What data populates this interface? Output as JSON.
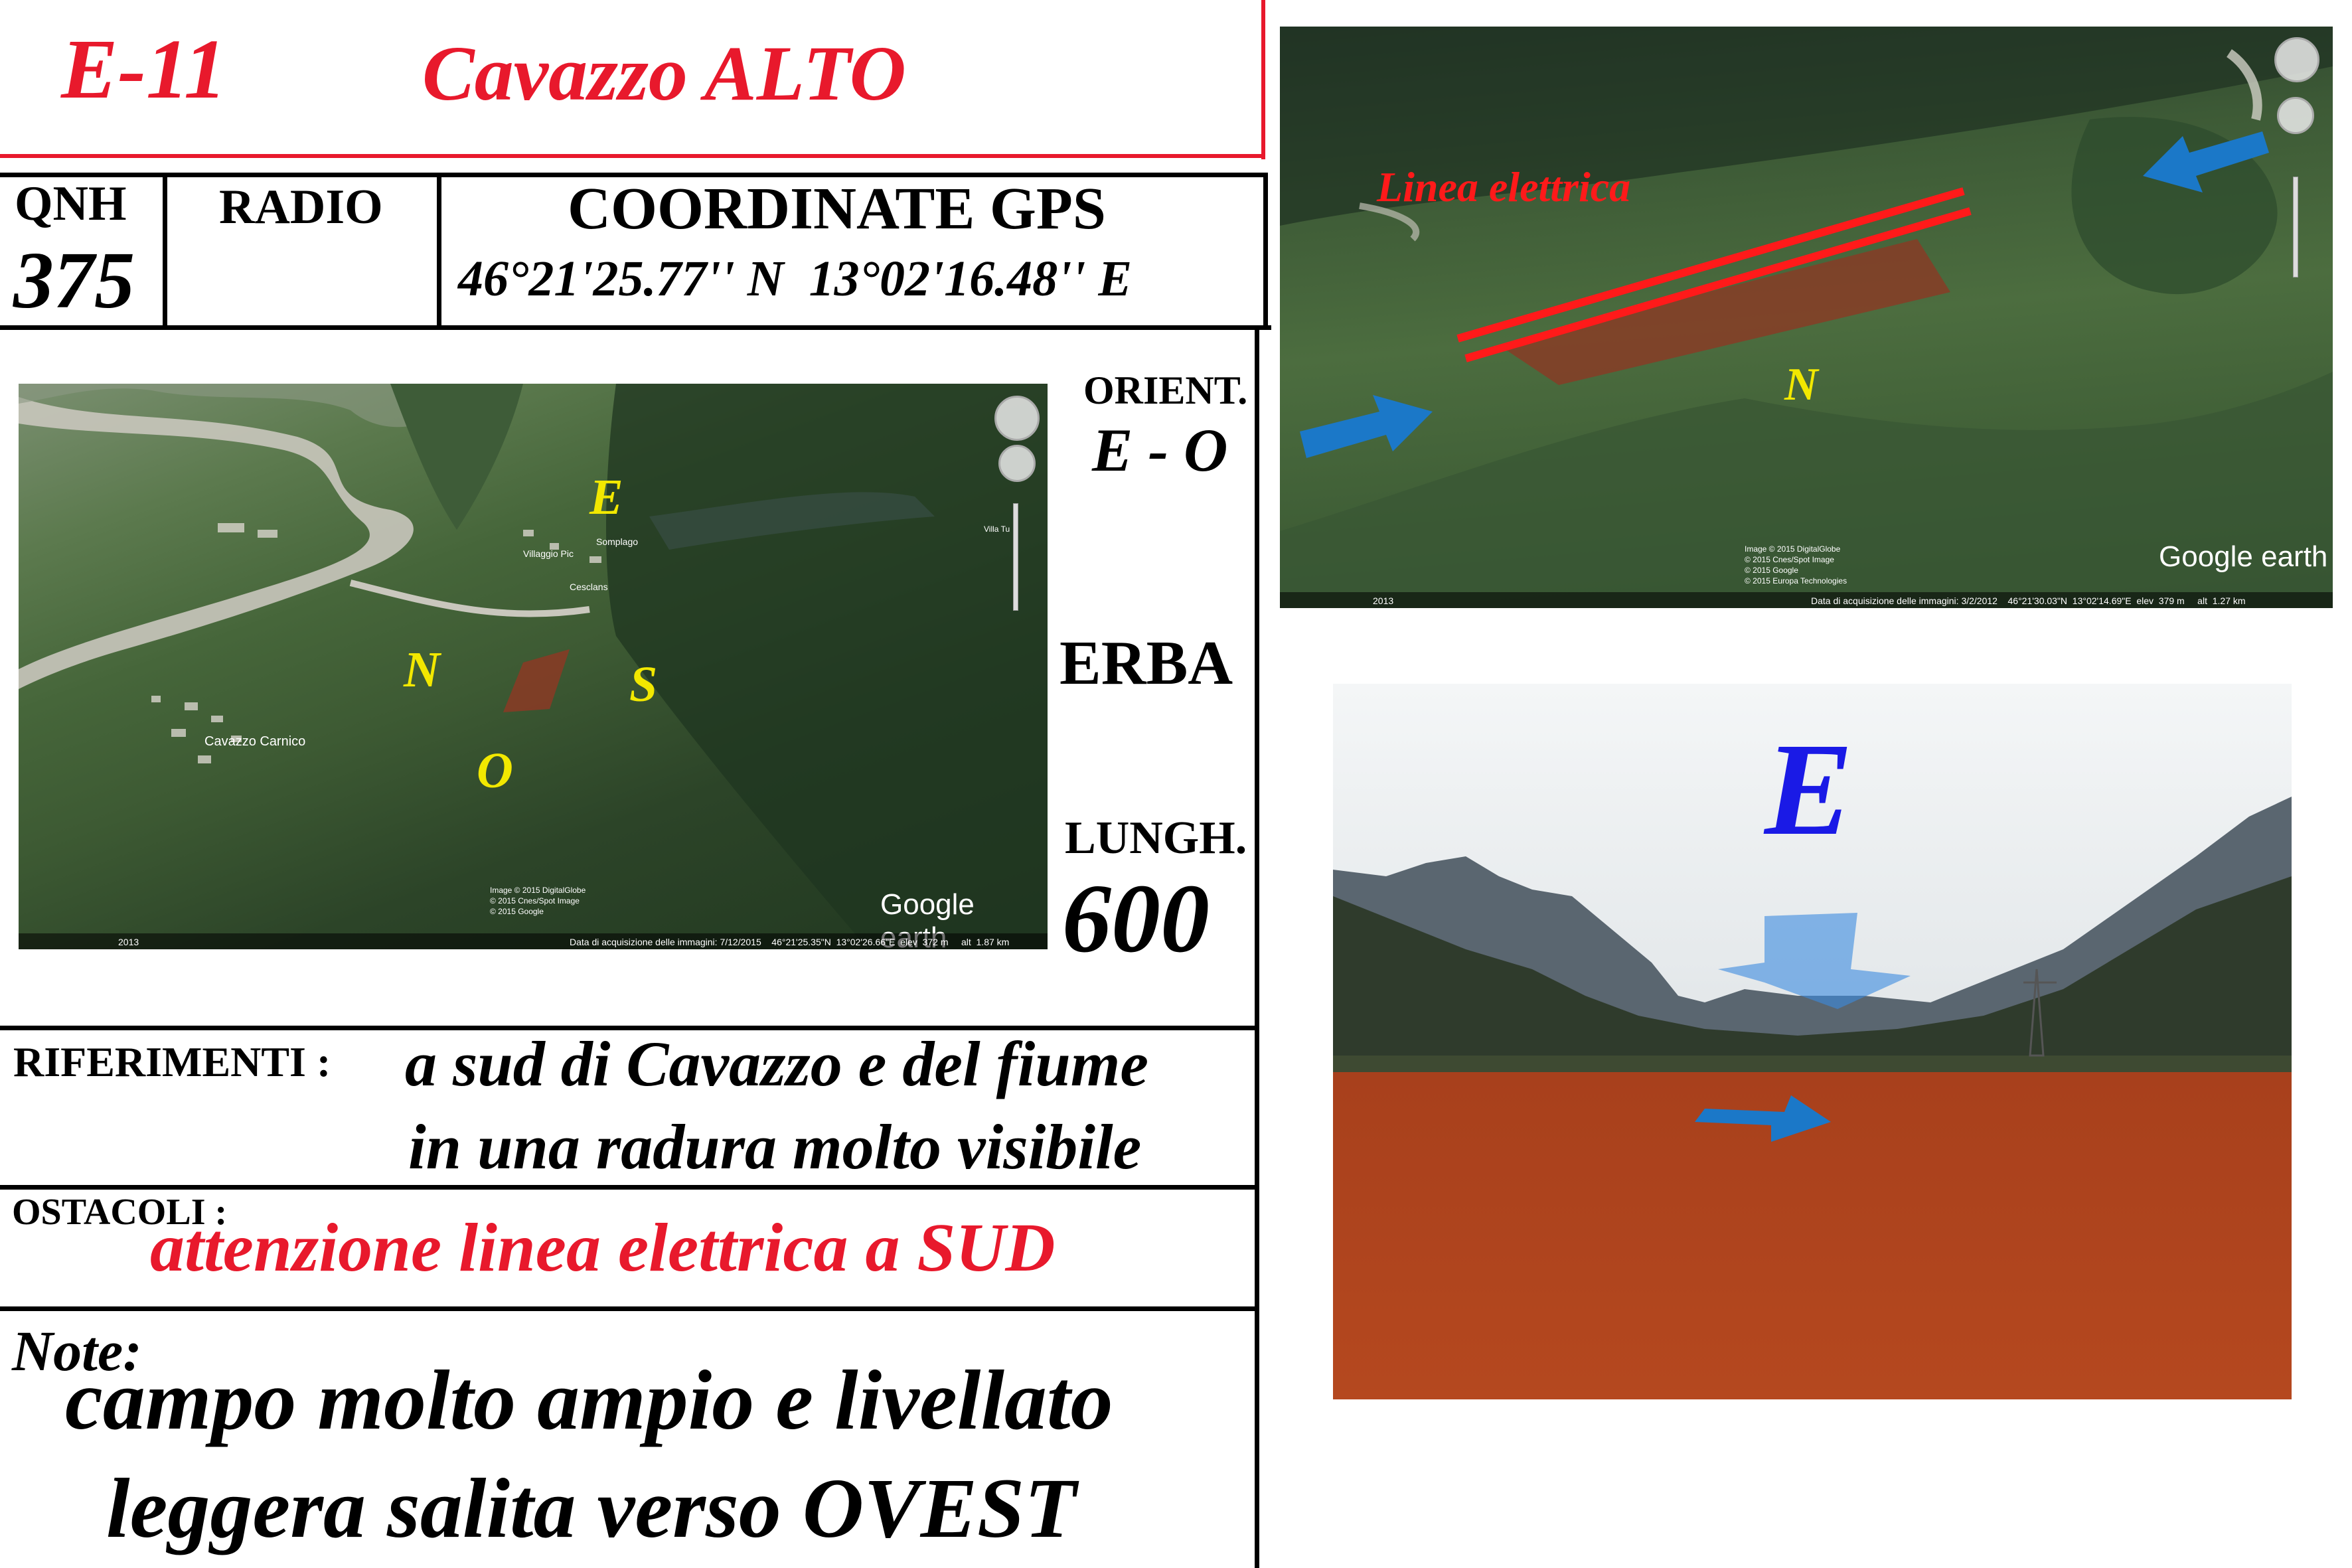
{
  "header": {
    "code": "E-11",
    "name": "Cavazzo ALTO"
  },
  "info": {
    "qnh_label": "QNH",
    "qnh_value": "375",
    "radio_label": "RADIO",
    "gps_label": "COORDINATE GPS",
    "gps_value": "46°21'25.77'' N  13°02'16.48'' E"
  },
  "side": {
    "orient_label": "ORIENT.",
    "orient_value": "E - O",
    "surface": "ERBA",
    "length_label": "LUNGH.",
    "length_value": "600"
  },
  "map_left": {
    "labels": [
      "E",
      "N",
      "S",
      "O"
    ],
    "logo": "Google earth",
    "year": "2013",
    "places": [
      "Cavazzo Carnico",
      "Somplago",
      "Cesclans",
      "Villaggio Pic",
      "Villa Tu"
    ],
    "footer": "Data di acquisizione delle immagini: 7/12/2015    46°21'25.35\"N  13°02'26.66\"E  elev  372 m     alt  1.87 km",
    "credits": [
      "Image © 2015 DigitalGlobe",
      "© 2015 Cnes/Spot Image",
      "© 2015 Google"
    ],
    "colors": {
      "strip": "#8b3a24",
      "label": "#f2e800"
    }
  },
  "references": {
    "label": "RIFERIMENTI :",
    "line1": "a sud di Cavazzo e del fiume",
    "line2": "in una radura molto visibile"
  },
  "obstacles": {
    "label": "OSTACOLI :",
    "text": "attenzione linea elettrica a SUD"
  },
  "notes": {
    "label": "Note:",
    "line1": "campo molto ampio e livellato",
    "line2": "leggera salita verso OVEST"
  },
  "map_right": {
    "power_line_label": "Linea elettrica",
    "north_label": "N",
    "logo": "Google earth",
    "year": "2013",
    "credits": [
      "Image © 2015 DigitalGlobe",
      "© 2015 Cnes/Spot Image",
      "© 2015 Google",
      "© 2015 Europa Technologies"
    ],
    "footer": "Data di acquisizione delle immagini: 3/2/2012    46°21'30.03\"N  13°02'14.69\"E  elev  379 m     alt  1.27 km",
    "colors": {
      "arrow": "#1b78c8",
      "power_line": "#ff1a1a"
    }
  },
  "photo": {
    "direction_label": "E",
    "colors": {
      "label": "#1a1ae6",
      "field": "#b7461e",
      "arrow": "#3a8be0"
    }
  }
}
